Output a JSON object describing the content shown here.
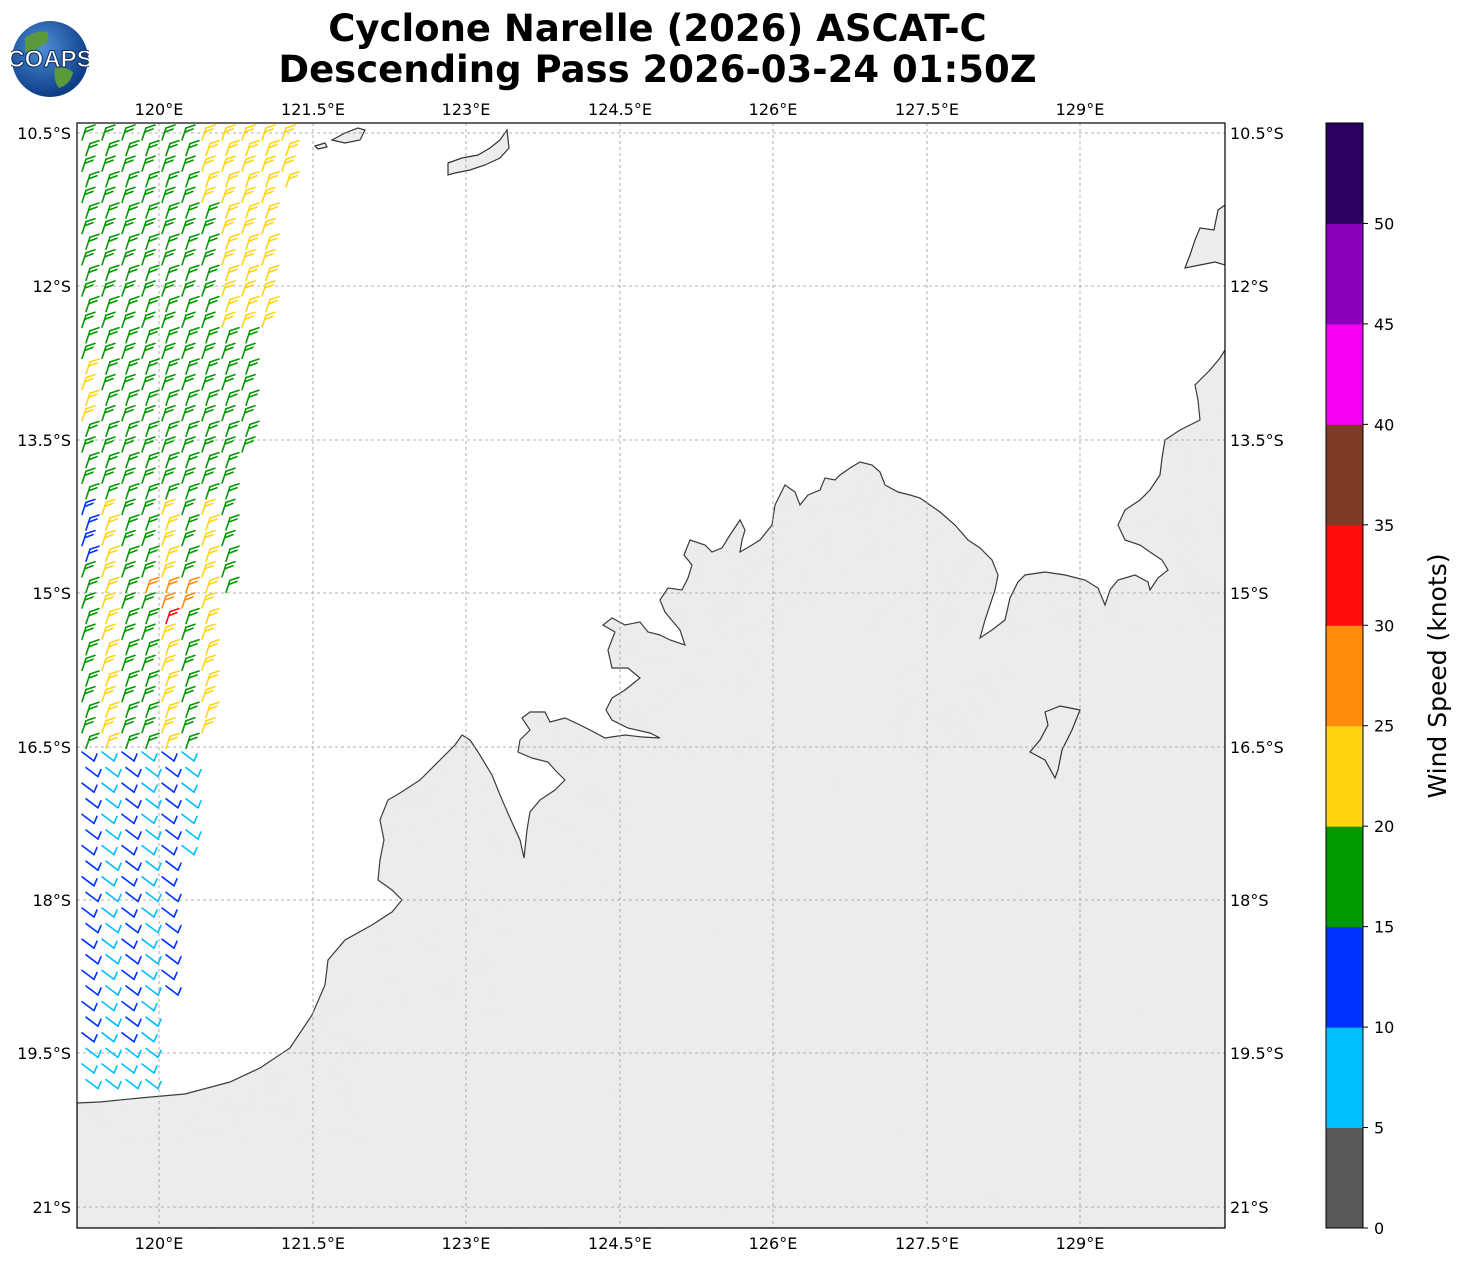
{
  "title": {
    "line1": "Cyclone Narelle (2026) ASCAT-C",
    "line2": "Descending Pass 2026-03-24 01:50Z"
  },
  "logo": {
    "text": "COAPS",
    "icon": "coaps-globe-logo"
  },
  "map": {
    "lon_ticks": [
      "120°E",
      "121.5°E",
      "123°E",
      "124.5°E",
      "126°E",
      "127.5°E",
      "129°E"
    ],
    "lat_ticks": [
      "10.5°S",
      "12°S",
      "13.5°S",
      "15°S",
      "16.5°S",
      "18°S",
      "19.5°S",
      "21°S"
    ],
    "land_color": "#ececec",
    "coast_color": "#333333"
  },
  "colorbar": {
    "label": "Wind Speed (knots)",
    "ticks": [
      "0",
      "5",
      "10",
      "15",
      "20",
      "25",
      "30",
      "35",
      "40",
      "45",
      "50"
    ],
    "colors": [
      "#595959",
      "#00bfff",
      "#0033ff",
      "#009900",
      "#ffd511",
      "#ff8c0a",
      "#ff0d0d",
      "#7f3a26",
      "#f500f0",
      "#8800b8",
      "#2b005c"
    ]
  }
}
